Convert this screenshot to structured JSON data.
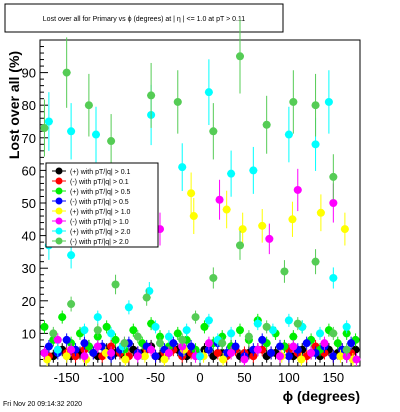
{
  "title": "Lost over all for Primary vs ϕ (degrees) at | η | <= 1.0 at pT > 0.11",
  "footer": "Fri Nov 20 09:14:32 2020",
  "chart_data": {
    "type": "scatter",
    "title": "Lost over all for Primary vs ϕ (degrees) at | η | <= 1.0 at pT > 0.11",
    "xlabel": "ϕ (degrees)",
    "ylabel": "Lost over all (%)",
    "xlim": [
      -180,
      180
    ],
    "ylim": [
      0,
      100
    ],
    "x_ticks": [
      -150,
      -100,
      -50,
      0,
      50,
      100,
      150
    ],
    "y_ticks": [
      10,
      20,
      30,
      40,
      50,
      60,
      70,
      80,
      90
    ],
    "grid": false,
    "legend_position": "left-middle",
    "series": [
      {
        "name": "(+) with pT/|q| > 0.1",
        "color": "#000000",
        "marker": "circle",
        "points": [
          [
            -175,
            4
          ],
          [
            -165,
            3
          ],
          [
            -155,
            5
          ],
          [
            -145,
            3
          ],
          [
            -135,
            4
          ],
          [
            -125,
            6
          ],
          [
            -115,
            3
          ],
          [
            -105,
            5
          ],
          [
            -95,
            4
          ],
          [
            -85,
            3
          ],
          [
            -75,
            5
          ],
          [
            -65,
            4
          ],
          [
            -55,
            6
          ],
          [
            -45,
            3
          ],
          [
            -35,
            4
          ],
          [
            -25,
            5
          ],
          [
            -15,
            3
          ],
          [
            -5,
            4
          ],
          [
            5,
            5
          ],
          [
            15,
            3
          ],
          [
            25,
            4
          ],
          [
            35,
            6
          ],
          [
            45,
            3
          ],
          [
            55,
            4
          ],
          [
            65,
            5
          ],
          [
            75,
            3
          ],
          [
            85,
            4
          ],
          [
            95,
            6
          ],
          [
            105,
            3
          ],
          [
            115,
            5
          ],
          [
            125,
            4
          ],
          [
            135,
            3
          ],
          [
            145,
            5
          ],
          [
            155,
            4
          ],
          [
            165,
            3
          ],
          [
            175,
            5
          ]
        ]
      },
      {
        "name": "(-) with pT/|q| > 0.1",
        "color": "#ff0000",
        "marker": "circle",
        "points": [
          [
            -170,
            3
          ],
          [
            -160,
            5
          ],
          [
            -150,
            4
          ],
          [
            -140,
            3
          ],
          [
            -130,
            5
          ],
          [
            -120,
            4
          ],
          [
            -110,
            3
          ],
          [
            -100,
            6
          ],
          [
            -90,
            4
          ],
          [
            -80,
            3
          ],
          [
            -70,
            4
          ],
          [
            -60,
            5
          ],
          [
            -50,
            3
          ],
          [
            -40,
            4
          ],
          [
            -30,
            5
          ],
          [
            -20,
            3
          ],
          [
            -10,
            4
          ],
          [
            0,
            3
          ],
          [
            10,
            5
          ],
          [
            20,
            4
          ],
          [
            30,
            3
          ],
          [
            40,
            5
          ],
          [
            50,
            4
          ],
          [
            60,
            3
          ],
          [
            70,
            5
          ],
          [
            80,
            4
          ],
          [
            90,
            3
          ],
          [
            100,
            5
          ],
          [
            110,
            4
          ],
          [
            120,
            3
          ],
          [
            130,
            6
          ],
          [
            140,
            4
          ],
          [
            150,
            3
          ],
          [
            160,
            5
          ],
          [
            170,
            4
          ]
        ]
      },
      {
        "name": "(+) with pT/|q| > 0.5",
        "color": "#00ee00",
        "marker": "circle",
        "points": [
          [
            -175,
            12
          ],
          [
            -165,
            8
          ],
          [
            -155,
            15
          ],
          [
            -145,
            7
          ],
          [
            -135,
            10
          ],
          [
            -125,
            6
          ],
          [
            -115,
            9
          ],
          [
            -105,
            12
          ],
          [
            -95,
            8
          ],
          [
            -85,
            5
          ],
          [
            -75,
            11
          ],
          [
            -65,
            7
          ],
          [
            -55,
            13
          ],
          [
            -45,
            9
          ],
          [
            -35,
            6
          ],
          [
            -25,
            10
          ],
          [
            -15,
            8
          ],
          [
            -5,
            5
          ],
          [
            5,
            12
          ],
          [
            15,
            7
          ],
          [
            25,
            9
          ],
          [
            35,
            6
          ],
          [
            45,
            11
          ],
          [
            55,
            8
          ],
          [
            65,
            14
          ],
          [
            75,
            7
          ],
          [
            85,
            10
          ],
          [
            95,
            6
          ],
          [
            105,
            9
          ],
          [
            115,
            12
          ],
          [
            125,
            8
          ],
          [
            135,
            5
          ],
          [
            145,
            11
          ],
          [
            155,
            7
          ],
          [
            165,
            10
          ],
          [
            175,
            8
          ]
        ]
      },
      {
        "name": "(-) with pT/|q| > 0.5",
        "color": "#0000ff",
        "marker": "circle",
        "points": [
          [
            -170,
            6
          ],
          [
            -160,
            4
          ],
          [
            -150,
            8
          ],
          [
            -140,
            5
          ],
          [
            -130,
            7
          ],
          [
            -120,
            4
          ],
          [
            -110,
            6
          ],
          [
            -100,
            3
          ],
          [
            -90,
            5
          ],
          [
            -80,
            7
          ],
          [
            -70,
            4
          ],
          [
            -60,
            6
          ],
          [
            -50,
            3
          ],
          [
            -40,
            5
          ],
          [
            -30,
            7
          ],
          [
            -20,
            4
          ],
          [
            -10,
            6
          ],
          [
            0,
            3
          ],
          [
            10,
            5
          ],
          [
            20,
            7
          ],
          [
            30,
            4
          ],
          [
            40,
            6
          ],
          [
            50,
            3
          ],
          [
            60,
            5
          ],
          [
            70,
            8
          ],
          [
            80,
            4
          ],
          [
            90,
            6
          ],
          [
            100,
            3
          ],
          [
            110,
            5
          ],
          [
            120,
            7
          ],
          [
            130,
            4
          ],
          [
            140,
            6
          ],
          [
            150,
            3
          ],
          [
            160,
            5
          ],
          [
            170,
            7
          ]
        ]
      },
      {
        "name": "(+) with pT/|q| > 1.0",
        "color": "#ffff00",
        "marker": "circle",
        "points": [
          [
            -172,
            2
          ],
          [
            -150,
            3
          ],
          [
            -128,
            2
          ],
          [
            -106,
            4
          ],
          [
            -84,
            2
          ],
          [
            -62,
            3
          ],
          [
            -40,
            2
          ],
          [
            -18,
            5
          ],
          [
            -10,
            53
          ],
          [
            -7,
            46
          ],
          [
            4,
            3
          ],
          [
            26,
            2
          ],
          [
            30,
            48
          ],
          [
            48,
            42
          ],
          [
            70,
            43
          ],
          [
            92,
            3
          ],
          [
            104,
            45
          ],
          [
            114,
            2
          ],
          [
            136,
            47
          ],
          [
            158,
            3
          ],
          [
            163,
            42
          ],
          [
            172,
            2
          ]
        ]
      },
      {
        "name": "(-) with pT/|q| > 1.0",
        "color": "#ff00ff",
        "marker": "circle",
        "points": [
          [
            -175,
            4
          ],
          [
            -160,
            8
          ],
          [
            -145,
            5
          ],
          [
            -130,
            3
          ],
          [
            -115,
            6
          ],
          [
            -100,
            4
          ],
          [
            -85,
            7
          ],
          [
            -70,
            3
          ],
          [
            -55,
            5
          ],
          [
            -45,
            42
          ],
          [
            -35,
            4
          ],
          [
            -20,
            6
          ],
          [
            -5,
            3
          ],
          [
            10,
            7
          ],
          [
            22,
            51
          ],
          [
            35,
            4
          ],
          [
            50,
            2
          ],
          [
            65,
            5
          ],
          [
            78,
            39
          ],
          [
            90,
            3
          ],
          [
            105,
            6
          ],
          [
            110,
            54
          ],
          [
            125,
            4
          ],
          [
            140,
            7
          ],
          [
            150,
            50
          ],
          [
            165,
            3
          ],
          [
            176,
            2
          ]
        ]
      },
      {
        "name": "(+) with pT/|q| > 2.0",
        "color": "#00ffff",
        "marker": "circle",
        "points": [
          [
            -170,
            75
          ],
          [
            -170,
            37
          ],
          [
            -160,
            5
          ],
          [
            -145,
            72
          ],
          [
            -145,
            34
          ],
          [
            -130,
            11
          ],
          [
            -117,
            71
          ],
          [
            -115,
            15
          ],
          [
            -100,
            10
          ],
          [
            -87,
            6
          ],
          [
            -80,
            18
          ],
          [
            -55,
            77
          ],
          [
            -57,
            23
          ],
          [
            -50,
            12
          ],
          [
            -35,
            9
          ],
          [
            -20,
            61
          ],
          [
            -15,
            11
          ],
          [
            0,
            3
          ],
          [
            10,
            84
          ],
          [
            10,
            14
          ],
          [
            20,
            8
          ],
          [
            35,
            59
          ],
          [
            35,
            10
          ],
          [
            60,
            60
          ],
          [
            65,
            13
          ],
          [
            82,
            11
          ],
          [
            100,
            71
          ],
          [
            100,
            14
          ],
          [
            115,
            12
          ],
          [
            130,
            68
          ],
          [
            135,
            10
          ],
          [
            145,
            81
          ],
          [
            150,
            27
          ],
          [
            165,
            12
          ]
        ]
      },
      {
        "name": "(-) with pT/|q| > 2.0",
        "color": "#55cc55",
        "marker": "circle",
        "points": [
          [
            -175,
            73
          ],
          [
            -165,
            10
          ],
          [
            -150,
            90
          ],
          [
            -145,
            19
          ],
          [
            -125,
            80
          ],
          [
            -115,
            11
          ],
          [
            -100,
            69
          ],
          [
            -95,
            25
          ],
          [
            -85,
            7
          ],
          [
            -70,
            9
          ],
          [
            -55,
            83
          ],
          [
            -60,
            21
          ],
          [
            -45,
            7
          ],
          [
            -25,
            81
          ],
          [
            -20,
            8
          ],
          [
            -5,
            15
          ],
          [
            15,
            72
          ],
          [
            15,
            27
          ],
          [
            25,
            7
          ],
          [
            45,
            95
          ],
          [
            45,
            37
          ],
          [
            55,
            9
          ],
          [
            75,
            74
          ],
          [
            75,
            12
          ],
          [
            95,
            29
          ],
          [
            105,
            81
          ],
          [
            110,
            13
          ],
          [
            130,
            80
          ],
          [
            130,
            32
          ],
          [
            150,
            58
          ],
          [
            150,
            10
          ],
          [
            165,
            5
          ]
        ]
      }
    ]
  }
}
